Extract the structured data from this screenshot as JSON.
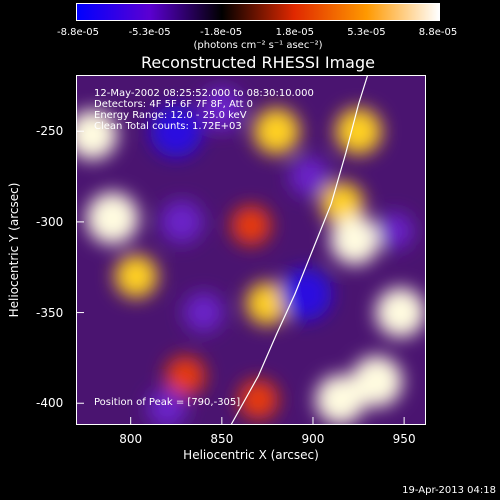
{
  "colorbar": {
    "tick_labels": [
      "-8.8e-05",
      "-5.3e-05",
      "-1.8e-05",
      "1.8e-05",
      "5.3e-05",
      "8.8e-05"
    ],
    "tick_values": [
      -8.8e-05,
      -5.3e-05,
      -1.8e-05,
      1.8e-05,
      5.3e-05,
      8.8e-05
    ],
    "range": [
      -8.8e-05,
      8.8e-05
    ],
    "unit": "(photons cm⁻² s⁻¹ asec⁻²)",
    "colors": [
      "#0000ff",
      "#5b00d2",
      "#000000",
      "#e02800",
      "#ff9900",
      "#ffffff"
    ]
  },
  "chart_data": {
    "type": "heatmap",
    "title": "Reconstructed RHESSI Image",
    "xlabel": "Heliocentric X (arcsec)",
    "ylabel": "Heliocentric Y (arcsec)",
    "xlim": [
      770,
      962
    ],
    "ylim": [
      -412,
      -219
    ],
    "x_ticks": [
      800,
      850,
      900,
      950
    ],
    "y_ticks": [
      -250,
      -300,
      -350,
      -400
    ],
    "peak": [
      790,
      -305
    ],
    "limb_curve": [
      [
        855,
        -412
      ],
      [
        870,
        -385
      ],
      [
        880,
        -362
      ],
      [
        890,
        -340
      ],
      [
        900,
        -315
      ],
      [
        910,
        -290
      ],
      [
        918,
        -262
      ],
      [
        925,
        -235
      ],
      [
        930,
        -219
      ]
    ],
    "intensity_blobs": [
      {
        "x": 779,
        "y": -252,
        "value": 8e-05
      },
      {
        "x": 790,
        "y": -298,
        "value": 8.8e-05
      },
      {
        "x": 803,
        "y": -330,
        "value": 6e-05
      },
      {
        "x": 830,
        "y": -385,
        "value": 5e-05
      },
      {
        "x": 880,
        "y": -250,
        "value": 7e-05
      },
      {
        "x": 866,
        "y": -302,
        "value": 5e-05
      },
      {
        "x": 875,
        "y": -345,
        "value": 6e-05
      },
      {
        "x": 916,
        "y": -290,
        "value": 6e-05
      },
      {
        "x": 925,
        "y": -250,
        "value": 7e-05
      },
      {
        "x": 923,
        "y": -310,
        "value": 8e-05
      },
      {
        "x": 948,
        "y": -350,
        "value": 8e-05
      },
      {
        "x": 935,
        "y": -388,
        "value": 8.5e-05
      },
      {
        "x": 915,
        "y": -398,
        "value": 8e-05
      },
      {
        "x": 870,
        "y": -398,
        "value": 5e-05
      },
      {
        "x": 825,
        "y": -250,
        "value": -8.8e-05
      },
      {
        "x": 850,
        "y": -238,
        "value": -6e-05
      },
      {
        "x": 828,
        "y": -300,
        "value": -6e-05
      },
      {
        "x": 840,
        "y": -350,
        "value": -5e-05
      },
      {
        "x": 896,
        "y": -340,
        "value": -8.8e-05
      },
      {
        "x": 898,
        "y": -275,
        "value": -5e-05
      },
      {
        "x": 820,
        "y": -403,
        "value": -5e-05
      },
      {
        "x": 945,
        "y": -305,
        "value": -4e-05
      }
    ]
  },
  "info": {
    "line1": "12-May-2002 08:25:52.000 to 08:30:10.000",
    "line2": "Detectors: 4F 5F 6F 7F 8F, Att 0",
    "line3": "Energy Range: 12.0 - 25.0 keV",
    "line4": "Clean     Total counts: 1.72E+03",
    "peak_text": "Position of Peak = [790,-305]"
  },
  "timestamp": "19-Apr-2013 04:18"
}
